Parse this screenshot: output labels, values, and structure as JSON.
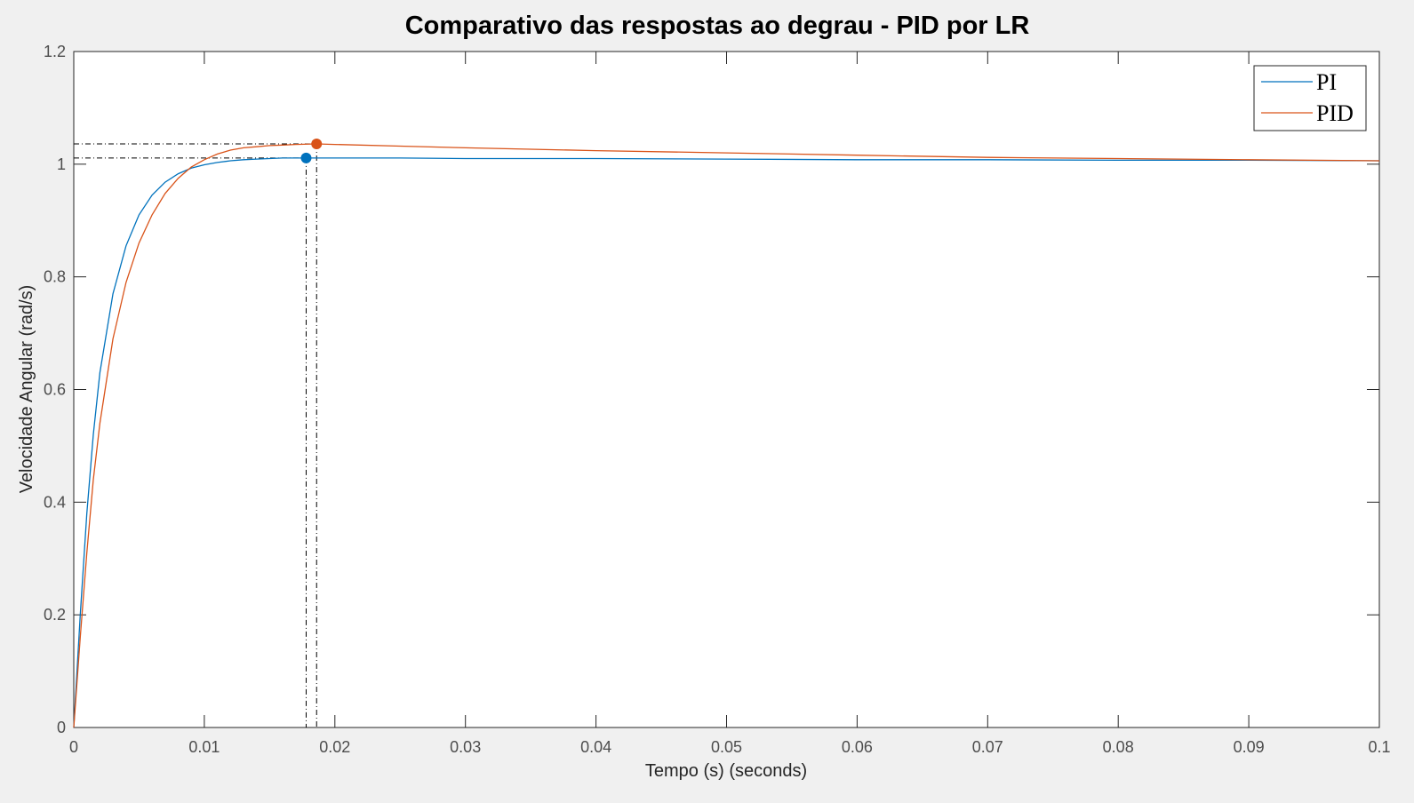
{
  "chart_data": {
    "type": "line",
    "title": "Comparativo das respostas ao degrau - PID por LR",
    "xlabel": "Tempo (s) (seconds)",
    "ylabel": "Velocidade Angular (rad/s)",
    "xlim": [
      0,
      0.1
    ],
    "ylim": [
      0,
      1.2
    ],
    "xticks": [
      0,
      0.01,
      0.02,
      0.03,
      0.04,
      0.05,
      0.06,
      0.07,
      0.08,
      0.09,
      0.1
    ],
    "xtick_labels": [
      "0",
      "0.01",
      "0.02",
      "0.03",
      "0.04",
      "0.05",
      "0.06",
      "0.07",
      "0.08",
      "0.09",
      "0.1"
    ],
    "yticks": [
      0,
      0.2,
      0.4,
      0.6,
      0.8,
      1,
      1.2
    ],
    "ytick_labels": [
      "0",
      "0.2",
      "0.4",
      "0.6",
      "0.8",
      "1",
      "1.2"
    ],
    "grid": false,
    "legend_position": "top-right",
    "series": [
      {
        "name": "PI",
        "color": "#0072bd",
        "x": [
          0,
          0.0005,
          0.001,
          0.0015,
          0.002,
          0.003,
          0.004,
          0.005,
          0.006,
          0.007,
          0.008,
          0.009,
          0.01,
          0.011,
          0.012,
          0.013,
          0.014,
          0.015,
          0.016,
          0.017,
          0.018,
          0.02,
          0.025,
          0.03,
          0.04,
          0.05,
          0.06,
          0.07,
          0.08,
          0.09,
          0.1
        ],
        "y": [
          0,
          0.2,
          0.38,
          0.52,
          0.63,
          0.77,
          0.855,
          0.91,
          0.945,
          0.968,
          0.983,
          0.993,
          0.999,
          1.003,
          1.006,
          1.008,
          1.009,
          1.01,
          1.011,
          1.011,
          1.011,
          1.011,
          1.011,
          1.01,
          1.01,
          1.009,
          1.008,
          1.008,
          1.007,
          1.007,
          1.006
        ]
      },
      {
        "name": "PID",
        "color": "#d95319",
        "x": [
          0,
          0.0005,
          0.001,
          0.0015,
          0.002,
          0.003,
          0.004,
          0.005,
          0.006,
          0.007,
          0.008,
          0.009,
          0.01,
          0.011,
          0.012,
          0.013,
          0.014,
          0.015,
          0.016,
          0.017,
          0.0186,
          0.02,
          0.025,
          0.03,
          0.04,
          0.05,
          0.06,
          0.07,
          0.08,
          0.09,
          0.1
        ],
        "y": [
          0,
          0.16,
          0.31,
          0.44,
          0.54,
          0.69,
          0.79,
          0.86,
          0.91,
          0.948,
          0.975,
          0.995,
          1.008,
          1.018,
          1.025,
          1.029,
          1.031,
          1.033,
          1.034,
          1.035,
          1.036,
          1.035,
          1.032,
          1.029,
          1.024,
          1.02,
          1.016,
          1.012,
          1.01,
          1.008,
          1.006
        ]
      }
    ],
    "annotations": [
      {
        "series": "PI",
        "x": 0.0178,
        "y": 1.011,
        "color": "#0072bd"
      },
      {
        "series": "PID",
        "x": 0.0186,
        "y": 1.036,
        "color": "#d95319"
      }
    ]
  }
}
